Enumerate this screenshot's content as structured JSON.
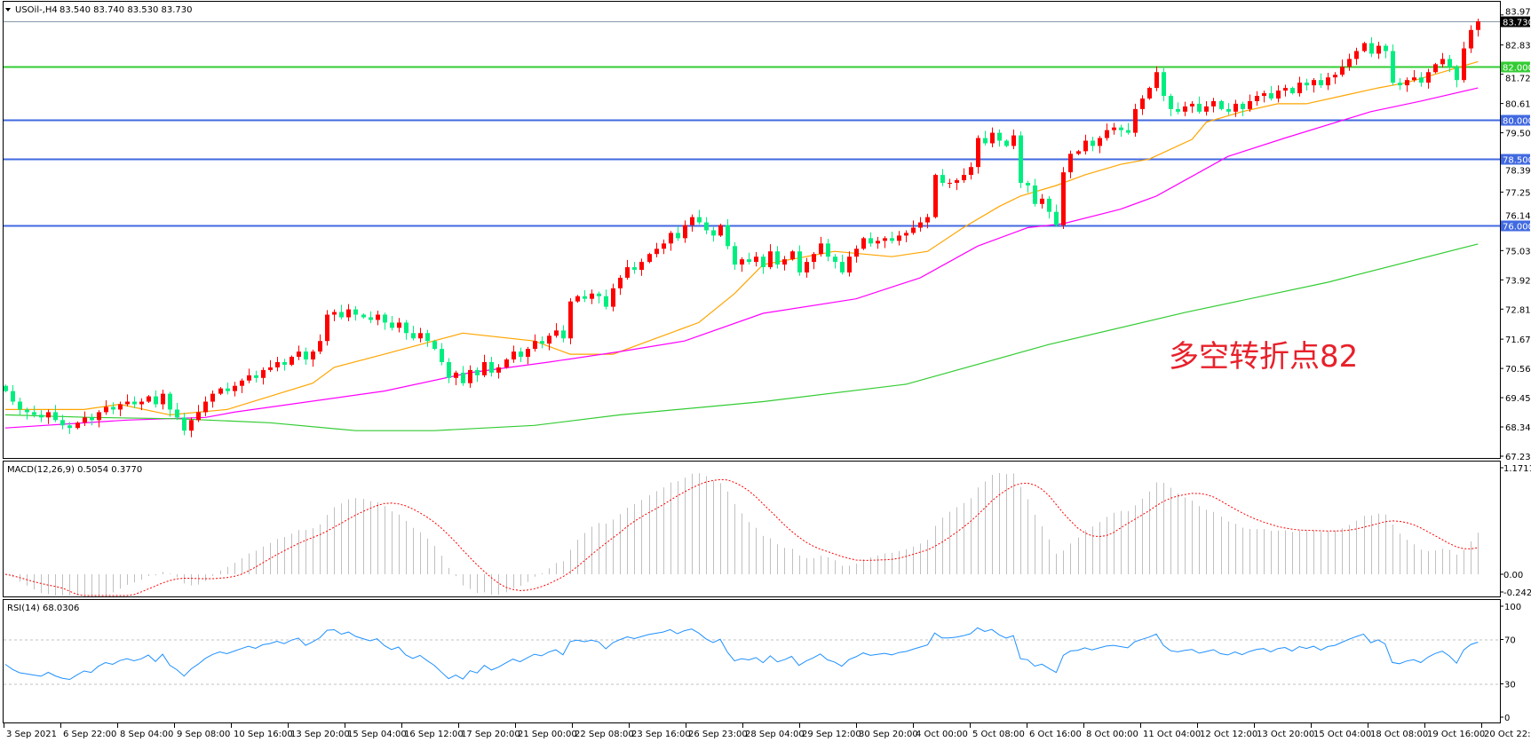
{
  "chart": {
    "symbol": "USOil-,H4",
    "ohlc_readout": "83.540 83.740 83.530 83.730",
    "annotation": "多空转折点82",
    "annotation_color": "#e8202a"
  },
  "chart_data": {
    "type": "candlestick",
    "first_open": 69.9,
    "closes": [
      69.7,
      69.3,
      69.0,
      68.9,
      68.8,
      68.7,
      68.9,
      68.6,
      68.4,
      68.3,
      68.5,
      68.7,
      68.6,
      68.9,
      69.1,
      69.0,
      69.2,
      69.3,
      69.2,
      69.3,
      69.5,
      69.2,
      69.6,
      69.0,
      68.7,
      68.2,
      68.6,
      68.9,
      69.3,
      69.6,
      69.8,
      69.7,
      69.9,
      70.1,
      70.3,
      70.2,
      70.5,
      70.6,
      70.8,
      70.7,
      71.0,
      71.2,
      70.9,
      71.2,
      71.6,
      72.6,
      72.7,
      72.5,
      72.8,
      72.6,
      72.5,
      72.4,
      72.6,
      72.3,
      72.1,
      72.3,
      71.9,
      71.7,
      71.9,
      71.6,
      71.3,
      70.8,
      70.2,
      70.4,
      70.0,
      70.5,
      70.3,
      70.8,
      70.4,
      70.6,
      70.9,
      71.2,
      71.0,
      71.3,
      71.6,
      71.5,
      71.8,
      72.0,
      71.7,
      73.1,
      73.3,
      73.2,
      73.4,
      73.3,
      72.9,
      73.6,
      74.0,
      74.4,
      74.3,
      74.6,
      74.9,
      75.1,
      75.3,
      75.7,
      75.5,
      76.0,
      76.3,
      76.1,
      75.8,
      75.6,
      76.0,
      75.2,
      74.5,
      74.7,
      74.6,
      74.8,
      74.4,
      75.0,
      74.5,
      74.7,
      75.0,
      74.2,
      74.6,
      74.9,
      75.3,
      74.8,
      74.6,
      74.2,
      74.8,
      75.1,
      75.5,
      75.3,
      75.4,
      75.5,
      75.4,
      75.6,
      75.7,
      75.9,
      76.1,
      76.3,
      77.9,
      77.6,
      77.6,
      77.7,
      77.9,
      78.2,
      79.3,
      79.1,
      79.5,
      79.2,
      79.0,
      79.4,
      77.6,
      77.5,
      76.8,
      77.0,
      76.5,
      76.0,
      78.0,
      78.7,
      78.8,
      79.2,
      79.0,
      79.3,
      79.6,
      79.7,
      79.6,
      79.5,
      80.4,
      80.8,
      81.2,
      81.8,
      80.9,
      80.4,
      80.3,
      80.5,
      80.6,
      80.3,
      80.5,
      80.7,
      80.4,
      80.3,
      80.6,
      80.4,
      80.7,
      80.9,
      81.0,
      80.8,
      81.1,
      81.2,
      81.0,
      81.4,
      81.3,
      81.5,
      81.3,
      81.6,
      81.7,
      82.0,
      82.3,
      82.6,
      82.9,
      82.5,
      82.8,
      82.6,
      81.4,
      81.3,
      81.5,
      81.6,
      81.4,
      81.8,
      82.1,
      82.3,
      82.0,
      81.5,
      82.7,
      83.4,
      83.73
    ],
    "up_color": "#ff0000",
    "down_color": "#00ee80",
    "price_axis": {
      "min": 67.23,
      "max": 83.97,
      "ticks": [
        "83.970",
        "82.830",
        "81.720",
        "80.610",
        "79.500",
        "78.390",
        "77.250",
        "76.140",
        "75.030",
        "73.920",
        "72.810",
        "71.670",
        "70.560",
        "69.450",
        "68.340",
        "67.230"
      ]
    },
    "x_tick_labels": [
      "3 Sep 2021",
      "6 Sep 22:00",
      "8 Sep 04:00",
      "9 Sep 08:00",
      "10 Sep 16:00",
      "13 Sep 20:00",
      "15 Sep 04:00",
      "16 Sep 12:00",
      "17 Sep 20:00",
      "21 Sep 00:00",
      "22 Sep 08:00",
      "23 Sep 16:00",
      "26 Sep 23:00",
      "28 Sep 04:00",
      "29 Sep 12:00",
      "30 Sep 20:00",
      "4 Oct 00:00",
      "5 Oct 08:00",
      "6 Oct 16:00",
      "8 Oct 00:00",
      "11 Oct 04:00",
      "12 Oct 12:00",
      "13 Oct 20:00",
      "15 Oct 04:00",
      "18 Oct 08:00",
      "19 Oct 16:00",
      "20 Oct 22:00"
    ],
    "moving_averages": [
      {
        "color": "#ffa500",
        "points": [
          [
            0,
            69.0
          ],
          [
            11,
            69.0
          ],
          [
            16,
            69.2
          ],
          [
            23,
            68.8
          ],
          [
            31,
            69.0
          ],
          [
            37,
            69.5
          ],
          [
            43,
            70.0
          ],
          [
            46,
            70.6
          ],
          [
            53,
            71.1
          ],
          [
            64,
            71.9
          ],
          [
            74,
            71.6
          ],
          [
            79,
            71.1
          ],
          [
            85,
            71.1
          ],
          [
            91,
            71.7
          ],
          [
            97,
            72.3
          ],
          [
            102,
            73.4
          ],
          [
            106,
            74.5
          ],
          [
            116,
            75.0
          ],
          [
            124,
            74.8
          ],
          [
            129,
            75.0
          ],
          [
            134,
            75.9
          ],
          [
            139,
            76.7
          ],
          [
            142,
            77.1
          ],
          [
            147,
            77.5
          ],
          [
            151,
            77.9
          ],
          [
            156,
            78.3
          ],
          [
            160,
            78.5
          ],
          [
            166,
            79.25
          ],
          [
            168,
            79.9
          ],
          [
            173,
            80.3
          ],
          [
            178,
            80.6
          ],
          [
            182,
            80.6
          ],
          [
            187,
            80.9
          ],
          [
            192,
            81.2
          ],
          [
            196,
            81.4
          ],
          [
            201,
            81.8
          ],
          [
            206,
            82.2
          ]
        ]
      },
      {
        "color": "#ff00ff",
        "points": [
          [
            0,
            68.3
          ],
          [
            17,
            68.6
          ],
          [
            28,
            68.7
          ],
          [
            32,
            68.9
          ],
          [
            53,
            69.7
          ],
          [
            65,
            70.4
          ],
          [
            76,
            70.8
          ],
          [
            86,
            71.2
          ],
          [
            95,
            71.6
          ],
          [
            106,
            72.65
          ],
          [
            119,
            73.2
          ],
          [
            128,
            74.0
          ],
          [
            136,
            75.2
          ],
          [
            143,
            75.9
          ],
          [
            148,
            76.05
          ],
          [
            156,
            76.6
          ],
          [
            161,
            77.1
          ],
          [
            171,
            78.6
          ],
          [
            179,
            79.3
          ],
          [
            191,
            80.3
          ],
          [
            198,
            80.7
          ],
          [
            206,
            81.2
          ]
        ]
      },
      {
        "color": "#33cc33",
        "points": [
          [
            0,
            68.8
          ],
          [
            12,
            68.7
          ],
          [
            24,
            68.65
          ],
          [
            37,
            68.5
          ],
          [
            49,
            68.2
          ],
          [
            60,
            68.2
          ],
          [
            74,
            68.4
          ],
          [
            86,
            68.8
          ],
          [
            106,
            69.3
          ],
          [
            126,
            69.96
          ],
          [
            146,
            71.47
          ],
          [
            165,
            72.68
          ],
          [
            185,
            73.83
          ],
          [
            206,
            75.28
          ]
        ]
      }
    ],
    "levels": [
      {
        "value": 83.73,
        "label": "83.730",
        "color": "#8899aa",
        "tag_color": "#000000"
      },
      {
        "value": 82.0,
        "label": "82.000",
        "color": "#33cc33",
        "tag_color": "#33cc33"
      },
      {
        "value": 80.0,
        "label": "80.000",
        "color": "#4169e1",
        "tag_color": "#4169e1"
      },
      {
        "value": 78.5,
        "label": "78.500",
        "color": "#4169e1",
        "tag_color": "#4169e1"
      },
      {
        "value": 76.0,
        "label": "76.000",
        "color": "#4169e1",
        "tag_color": "#4169e1"
      }
    ],
    "macd": {
      "label": "MACD(12,26,9) 0.5054 0.3770",
      "ylim": [
        -0.2424,
        1.1711
      ],
      "ticks": [
        "1.1711",
        "0.00",
        "-0.2424"
      ],
      "hist_color": "#c0c0c0",
      "signal_color": "#ff0000"
    },
    "rsi": {
      "label": "RSI(14) 68.0306",
      "ylim": [
        0,
        100
      ],
      "ticks": [
        "100",
        "70",
        "30",
        "0"
      ],
      "levels": [
        70,
        30
      ],
      "line_color": "#1e90ff"
    }
  }
}
